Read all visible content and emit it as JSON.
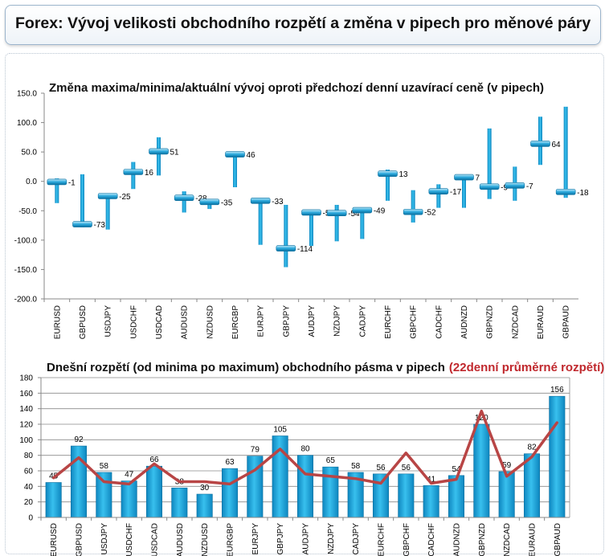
{
  "header": {
    "title": "Forex: Vývoj velikosti obchodního rozpětí a změna v pipech pro měnové páry"
  },
  "colors": {
    "bar": "#1ba3dc",
    "bar_dark": "#0e7fb4",
    "avg_line": "#b84545",
    "highlight_text": "#c0282d"
  },
  "chart_data": [
    {
      "type": "bar",
      "subtype": "high-low-close",
      "title": "Změna maxima/minima/aktuální vývoj oproti předchozí denní uzavírací ceně (v pipech)",
      "categories": [
        "EURUSD",
        "GBPUSD",
        "USDJPY",
        "USDCHF",
        "USDCAD",
        "AUDUSD",
        "NZDUSD",
        "EURGBP",
        "EURJPY",
        "GBPJPY",
        "AUDJPY",
        "NZDJPY",
        "CADJPY",
        "EURCHF",
        "GBPCHF",
        "CADCHF",
        "AUDNZD",
        "GBPNZD",
        "NZDCAD",
        "EURAUD",
        "GBPAUD"
      ],
      "series": [
        {
          "name": "high",
          "values": [
            5,
            12,
            -22,
            33,
            75,
            -17,
            -30,
            50,
            -30,
            -40,
            -50,
            -40,
            -45,
            20,
            -15,
            -5,
            10,
            90,
            25,
            110,
            127
          ]
        },
        {
          "name": "low",
          "values": [
            -37,
            -78,
            -82,
            -13,
            10,
            -53,
            -47,
            -10,
            -108,
            -146,
            -110,
            -102,
            -98,
            -33,
            -70,
            -45,
            -45,
            -30,
            -33,
            28,
            -28
          ]
        },
        {
          "name": "current",
          "values": [
            -1,
            -73,
            -25,
            16,
            51,
            -28,
            -35,
            46,
            -33,
            -114,
            -53,
            -54,
            -49,
            13,
            -52,
            -17,
            7,
            -9,
            -7,
            64,
            -18
          ]
        }
      ],
      "data_labels": [
        "-1",
        "-73",
        "-25",
        "16",
        "51",
        "-28",
        "-35",
        "46",
        "-33",
        "-114",
        "-53",
        "-54",
        "-49",
        "13",
        "-52",
        "-17",
        "7",
        "-9",
        "-7",
        "64",
        "-18"
      ],
      "yticks": [
        "150.0",
        "100.0",
        "50.0",
        "0.0",
        "-50.0",
        "-100.0",
        "-150.0",
        "-200.0"
      ],
      "ylim": [
        -200,
        150
      ],
      "grid": false
    },
    {
      "type": "bar",
      "title": "Dnešní rozpětí (od minima po maximum) obchodního pásma v pipech",
      "title_highlight": "(22denní průměrné rozpětí)",
      "categories": [
        "EURUSD",
        "GBPUSD",
        "USDJPY",
        "USDCHF",
        "USDCAD",
        "AUDUSD",
        "NZDUSD",
        "EURGBP",
        "EURJPY",
        "GBPJPY",
        "AUDJPY",
        "NZDJPY",
        "CADJPY",
        "EURCHF",
        "GBPCHF",
        "CADCHF",
        "AUDNZD",
        "GBPNZD",
        "NZDCAD",
        "EURAUD",
        "GBPAUD"
      ],
      "series": [
        {
          "name": "Dnešní rozpětí",
          "values": [
            45,
            92,
            58,
            47,
            66,
            38,
            30,
            63,
            79,
            105,
            80,
            65,
            58,
            56,
            56,
            41,
            54,
            120,
            59,
            82,
            156
          ]
        },
        {
          "name": "22denní průměrné rozpětí",
          "type": "line",
          "values": [
            51,
            77,
            46,
            43,
            69,
            46,
            46,
            43,
            61,
            88,
            56,
            53,
            50,
            44,
            83,
            44,
            49,
            137,
            53,
            78,
            122
          ]
        }
      ],
      "data_labels": [
        "45",
        "92",
        "58",
        "47",
        "66",
        "38",
        "30",
        "63",
        "79",
        "105",
        "80",
        "65",
        "58",
        "56",
        "56",
        "41",
        "54",
        "120",
        "59",
        "82",
        "156"
      ],
      "yticks": [
        "180",
        "160",
        "140",
        "120",
        "100",
        "80",
        "60",
        "40",
        "20",
        "0"
      ],
      "ylim": [
        0,
        180
      ],
      "grid": true
    }
  ]
}
